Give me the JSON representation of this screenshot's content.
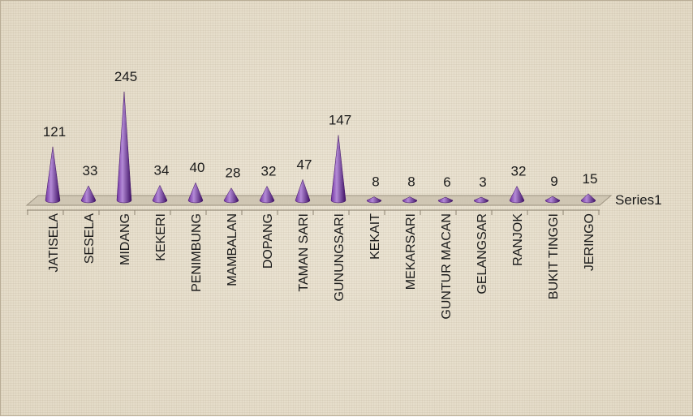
{
  "chart_data": {
    "type": "bar",
    "bar_shape": "cone",
    "categories": [
      "JATISELA",
      "SESELA",
      "MIDANG",
      "KEKERI",
      "PENIMBUNG",
      "MAMBALAN",
      "DOPANG",
      "TAMAN SARI",
      "GUNUNGSARI",
      "KEKAIT",
      "MEKARSARI",
      "GUNTUR MACAN",
      "GELANGSAR",
      "RANJOK",
      "BUKIT TINGGI",
      "JERINGO"
    ],
    "series": [
      {
        "name": "Series1",
        "values": [
          121,
          33,
          245,
          34,
          40,
          28,
          32,
          47,
          147,
          8,
          8,
          6,
          3,
          32,
          9,
          15
        ]
      }
    ],
    "data_labels": true,
    "legend_position": "right",
    "colors": {
      "bar": "#7030a0",
      "bar_highlight": "#b38ad6",
      "bar_shadow": "#3d0f63",
      "floor": "#cfc6b3"
    }
  }
}
